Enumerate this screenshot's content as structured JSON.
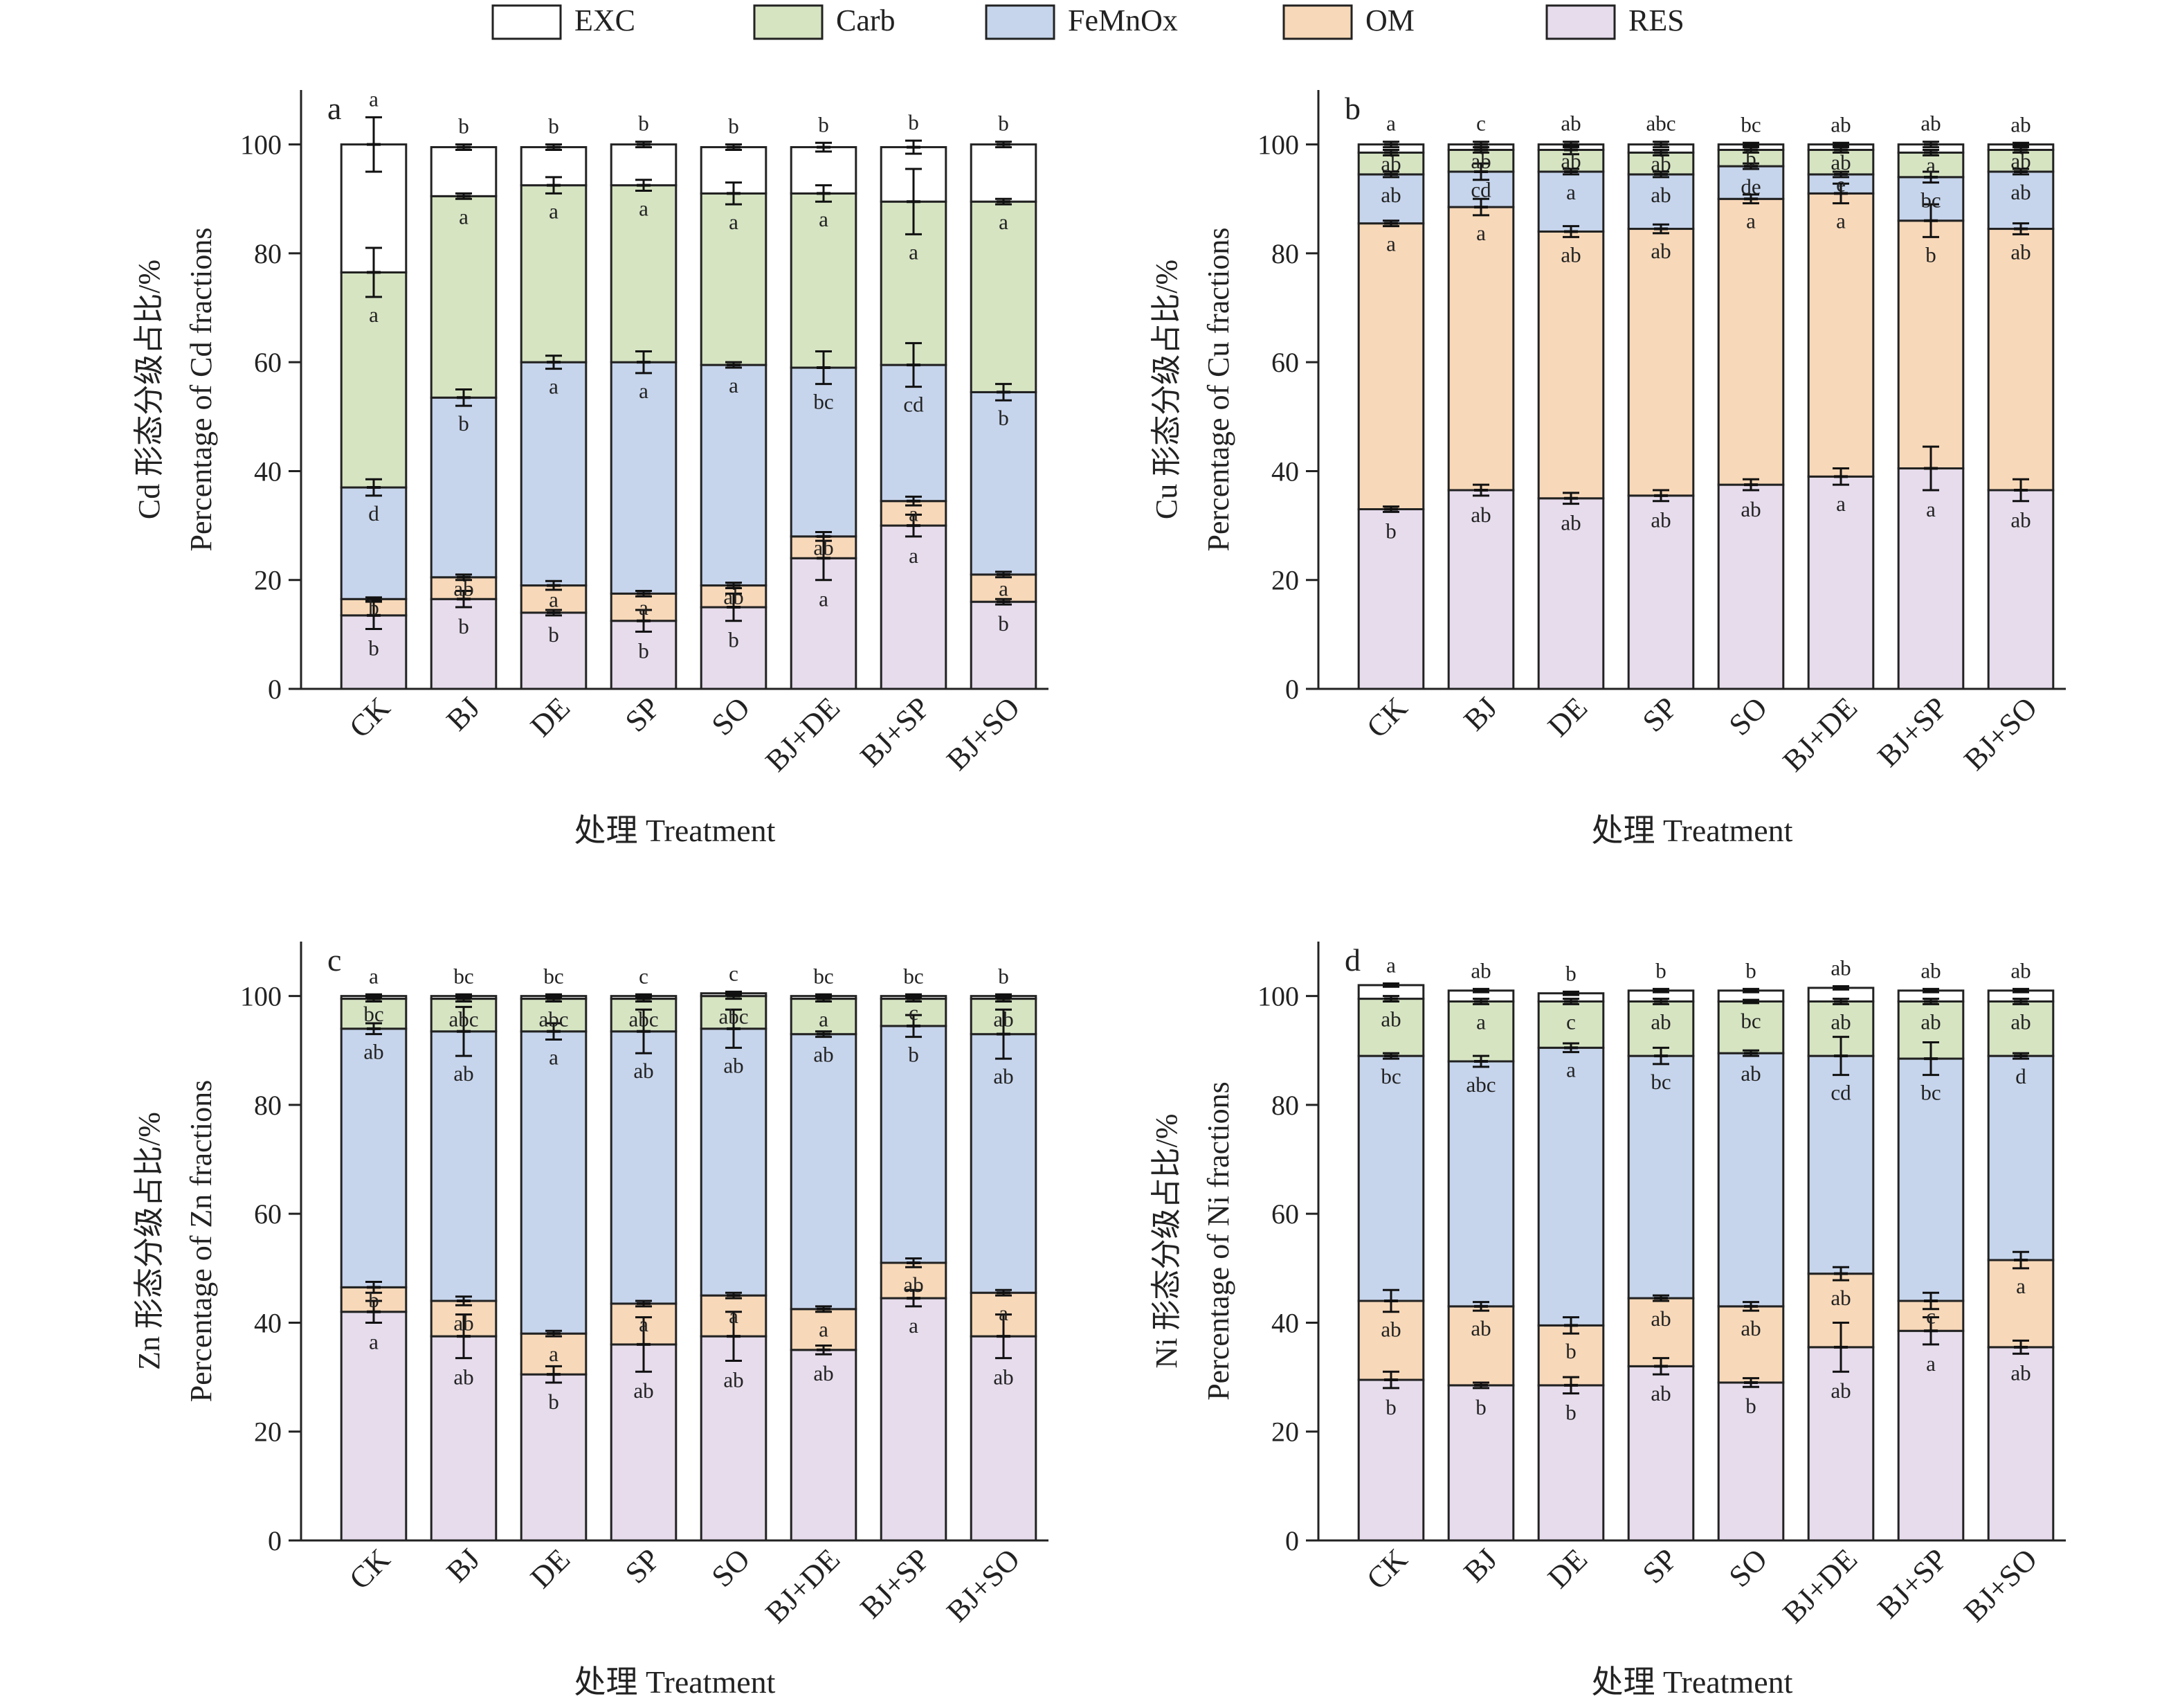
{
  "legend": {
    "items": [
      {
        "name": "EXC",
        "color": "#ffffff"
      },
      {
        "name": "Carb",
        "color": "#d6e4c2"
      },
      {
        "name": "FeMnOx",
        "color": "#c6d5ec"
      },
      {
        "name": "OM",
        "color": "#f7d8b8"
      },
      {
        "name": "RES",
        "color": "#e6dcec"
      }
    ]
  },
  "chart_data": [
    {
      "type": "bar",
      "stacked": true,
      "panel_label": "a",
      "categories": [
        "CK",
        "BJ",
        "DE",
        "SP",
        "SO",
        "BJ+DE",
        "BJ+SP",
        "BJ+SO"
      ],
      "xlabel": "处理 Treatment",
      "ylabel": [
        "Cd 形态分级占比/%",
        "Percentage of Cd fractions"
      ],
      "ylim": [
        0,
        110
      ],
      "yticks": [
        0,
        20,
        40,
        60,
        80,
        100
      ],
      "series": [
        {
          "name": "RES",
          "values": [
            13.5,
            16.5,
            14,
            12.5,
            15,
            24,
            30,
            16
          ],
          "errors": [
            2.5,
            1.5,
            0.5,
            2,
            2.5,
            4,
            2,
            0.5
          ],
          "letters": [
            "b",
            "b",
            "b",
            "b",
            "b",
            "a",
            "a",
            "b"
          ]
        },
        {
          "name": "OM",
          "values": [
            3,
            4,
            5,
            5,
            4,
            4,
            4.5,
            5
          ],
          "errors": [
            0.3,
            0.5,
            0.8,
            0.5,
            0.5,
            0.8,
            0.8,
            0.5
          ],
          "letters": [
            "b",
            "ab",
            "a",
            "a",
            "ab",
            "ab",
            "a",
            "a"
          ]
        },
        {
          "name": "FeMnOx",
          "values": [
            20.5,
            33,
            41,
            42.5,
            40.5,
            31,
            25,
            33.5
          ],
          "errors": [
            1.5,
            1.5,
            1.2,
            2,
            0.5,
            3,
            4,
            1.5
          ],
          "letters": [
            "d",
            "b",
            "a",
            "a",
            "a",
            "bc",
            "cd",
            "b"
          ]
        },
        {
          "name": "Carb",
          "values": [
            39.5,
            37,
            32.5,
            32.5,
            31.5,
            32,
            30,
            35
          ],
          "errors": [
            4.5,
            0.5,
            1.5,
            1,
            2,
            1.5,
            6,
            0.5
          ],
          "letters": [
            "a",
            "a",
            "a",
            "a",
            "a",
            "a",
            "a",
            "a"
          ]
        },
        {
          "name": "EXC",
          "values": [
            23.5,
            9,
            7,
            7.5,
            8.5,
            8.5,
            10,
            10.5
          ],
          "errors": [
            5,
            0.5,
            0.5,
            0.5,
            0.5,
            0.8,
            1.2,
            0.5
          ],
          "letters": [
            "a",
            "b",
            "b",
            "b",
            "b",
            "b",
            "b",
            "b"
          ]
        }
      ]
    },
    {
      "type": "bar",
      "stacked": true,
      "panel_label": "b",
      "categories": [
        "CK",
        "BJ",
        "DE",
        "SP",
        "SO",
        "BJ+DE",
        "BJ+SP",
        "BJ+SO"
      ],
      "xlabel": "处理 Treatment",
      "ylabel": [
        "Cu 形态分级占比/%",
        "Percentage of Cu fractions"
      ],
      "ylim": [
        0,
        110
      ],
      "yticks": [
        0,
        20,
        40,
        60,
        80,
        100
      ],
      "series": [
        {
          "name": "RES",
          "values": [
            33,
            36.5,
            35,
            35.5,
            37.5,
            39,
            40.5,
            36.5
          ],
          "errors": [
            0.5,
            1,
            1,
            1,
            1,
            1.5,
            4,
            2
          ],
          "letters": [
            "b",
            "ab",
            "ab",
            "ab",
            "ab",
            "a",
            "a",
            "ab"
          ]
        },
        {
          "name": "OM",
          "values": [
            52.5,
            52,
            49,
            49,
            52.5,
            52,
            45.5,
            48
          ],
          "errors": [
            0.5,
            1.5,
            1,
            0.8,
            0.8,
            1.8,
            3,
            1
          ],
          "letters": [
            "a",
            "a",
            "ab",
            "ab",
            "a",
            "a",
            "b",
            "ab"
          ]
        },
        {
          "name": "FeMnOx",
          "values": [
            9,
            6.5,
            11,
            10,
            6,
            3.5,
            8,
            10.5
          ],
          "errors": [
            0.5,
            1.5,
            0.5,
            0.5,
            0.5,
            0.5,
            1,
            0.5
          ],
          "letters": [
            "ab",
            "cd",
            "a",
            "ab",
            "de",
            "e",
            "bc",
            "ab"
          ]
        },
        {
          "name": "Carb",
          "values": [
            4,
            4,
            4,
            4,
            3,
            4.5,
            4.5,
            4
          ],
          "errors": [
            0.5,
            0.5,
            0.8,
            0.5,
            0.5,
            0.5,
            0.5,
            0.5
          ],
          "letters": [
            "ab",
            "ab",
            "ab",
            "ab",
            "b",
            "ab",
            "a",
            "ab"
          ]
        },
        {
          "name": "EXC",
          "values": [
            1.5,
            1,
            1,
            1.5,
            1,
            1,
            1.5,
            1
          ],
          "errors": [
            0.5,
            0.5,
            0.5,
            0.5,
            0.3,
            0.3,
            0.5,
            0.3
          ],
          "letters": [
            "a",
            "c",
            "ab",
            "abc",
            "bc",
            "ab",
            "ab",
            "ab"
          ]
        }
      ]
    },
    {
      "type": "bar",
      "stacked": true,
      "panel_label": "c",
      "categories": [
        "CK",
        "BJ",
        "DE",
        "SP",
        "SO",
        "BJ+DE",
        "BJ+SP",
        "BJ+SO"
      ],
      "xlabel": "处理 Treatment",
      "ylabel": [
        "Zn 形态分级占比/%",
        "Percentage of Zn fractions"
      ],
      "ylim": [
        0,
        110
      ],
      "yticks": [
        0,
        20,
        40,
        60,
        80,
        100
      ],
      "series": [
        {
          "name": "RES",
          "values": [
            42,
            37.5,
            30.5,
            36,
            37.5,
            35,
            44.5,
            37.5
          ],
          "errors": [
            2,
            4,
            1.5,
            5,
            4.5,
            0.8,
            1.5,
            4
          ],
          "letters": [
            "a",
            "ab",
            "b",
            "ab",
            "ab",
            "ab",
            "a",
            "ab"
          ]
        },
        {
          "name": "OM",
          "values": [
            4.5,
            6.5,
            7.5,
            7.5,
            7.5,
            7.5,
            6.5,
            8
          ],
          "errors": [
            1,
            0.8,
            0.5,
            0.5,
            0.5,
            0.5,
            0.8,
            0.5
          ],
          "letters": [
            "b",
            "ab",
            "a",
            "a",
            "a",
            "a",
            "ab",
            "a"
          ]
        },
        {
          "name": "FeMnOx",
          "values": [
            47.5,
            49.5,
            55.5,
            50,
            49,
            50.5,
            43.5,
            47.5
          ],
          "errors": [
            1,
            4.5,
            1.5,
            4,
            3.5,
            0.5,
            2,
            4.5
          ],
          "letters": [
            "ab",
            "ab",
            "a",
            "ab",
            "ab",
            "ab",
            "b",
            "ab"
          ]
        },
        {
          "name": "Carb",
          "values": [
            5.5,
            6,
            6,
            6,
            6,
            6.5,
            5,
            6.5
          ],
          "errors": [
            0.5,
            0.5,
            0.5,
            0.5,
            0.5,
            0.5,
            0.5,
            0.5
          ],
          "letters": [
            "bc",
            "abc",
            "abc",
            "abc",
            "abc",
            "a",
            "c",
            "ab"
          ]
        },
        {
          "name": "EXC",
          "values": [
            0.5,
            0.5,
            0.5,
            0.5,
            0.5,
            0.5,
            0.5,
            0.5
          ],
          "errors": [
            0.3,
            0.3,
            0.3,
            0.3,
            0.3,
            0.3,
            0.3,
            0.3
          ],
          "letters": [
            "a",
            "bc",
            "bc",
            "c",
            "c",
            "bc",
            "bc",
            "b"
          ]
        }
      ]
    },
    {
      "type": "bar",
      "stacked": true,
      "panel_label": "d",
      "categories": [
        "CK",
        "BJ",
        "DE",
        "SP",
        "SO",
        "BJ+DE",
        "BJ+SP",
        "BJ+SO"
      ],
      "xlabel": "处理 Treatment",
      "ylabel": [
        "Ni 形态分级占比/%",
        "Percentage of Ni fractions"
      ],
      "ylim": [
        0,
        110
      ],
      "yticks": [
        0,
        20,
        40,
        60,
        80,
        100
      ],
      "series": [
        {
          "name": "RES",
          "values": [
            29.5,
            28.5,
            28.5,
            32,
            29,
            35.5,
            38.5,
            35.5
          ],
          "errors": [
            1.5,
            0.5,
            1.5,
            1.5,
            0.8,
            4.5,
            2.5,
            1.2
          ],
          "letters": [
            "b",
            "b",
            "b",
            "ab",
            "b",
            "ab",
            "a",
            "ab"
          ]
        },
        {
          "name": "OM",
          "values": [
            14.5,
            14.5,
            11,
            12.5,
            14,
            13.5,
            5.5,
            16
          ],
          "errors": [
            2,
            0.8,
            1.5,
            0.5,
            0.8,
            1.2,
            1.5,
            1.5
          ],
          "letters": [
            "ab",
            "ab",
            "b",
            "ab",
            "ab",
            "ab",
            "c",
            "a"
          ]
        },
        {
          "name": "FeMnOx",
          "values": [
            45,
            45,
            51,
            44.5,
            46.5,
            40,
            44.5,
            37.5
          ],
          "errors": [
            0.5,
            1,
            0.8,
            1.5,
            0.5,
            3.5,
            3,
            0.5
          ],
          "letters": [
            "bc",
            "abc",
            "a",
            "bc",
            "ab",
            "cd",
            "bc",
            "d"
          ]
        },
        {
          "name": "Carb",
          "values": [
            10.5,
            11,
            8.5,
            10,
            9.5,
            10,
            10.5,
            10
          ],
          "errors": [
            0.5,
            0.5,
            0.5,
            0.5,
            0.3,
            0.5,
            0.5,
            0.5
          ],
          "letters": [
            "ab",
            "a",
            "c",
            "ab",
            "bc",
            "ab",
            "ab",
            "ab"
          ]
        },
        {
          "name": "EXC",
          "values": [
            2.5,
            2,
            1.5,
            2,
            2,
            2.5,
            2,
            2
          ],
          "errors": [
            0.3,
            0.3,
            0.3,
            0.3,
            0.3,
            0.3,
            0.3,
            0.3
          ],
          "letters": [
            "a",
            "ab",
            "b",
            "b",
            "b",
            "ab",
            "ab",
            "ab"
          ]
        }
      ]
    }
  ]
}
